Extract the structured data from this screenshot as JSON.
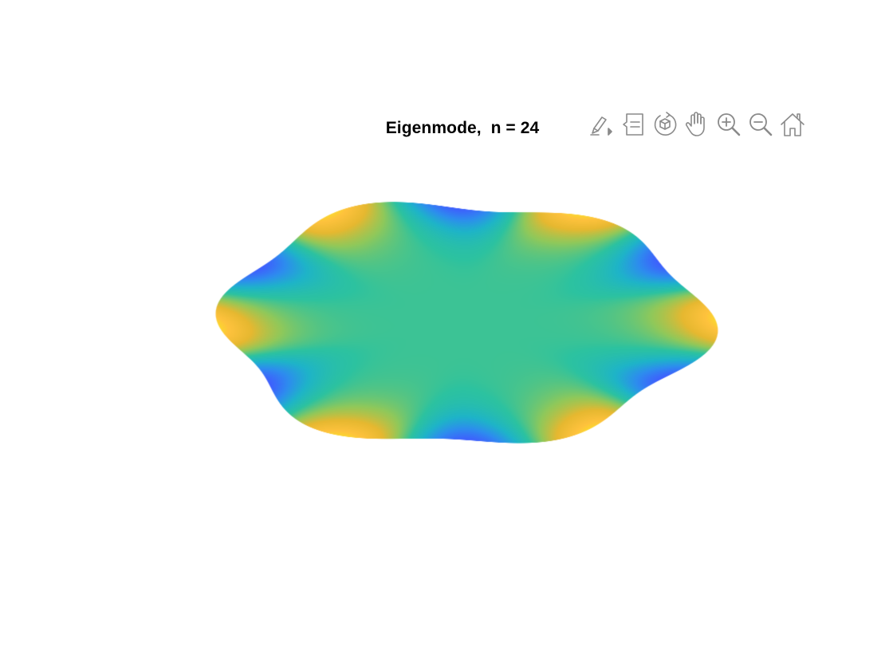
{
  "figure": {
    "title": "Eigenmode,  n = 24"
  },
  "toolbar": {
    "items": [
      {
        "name": "brush-icon",
        "tooltip_label": "Brush"
      },
      {
        "name": "data-tips-icon",
        "tooltip_label": "Data Tips"
      },
      {
        "name": "rotate-3d-icon",
        "tooltip_label": "Rotate 3D"
      },
      {
        "name": "pan-hand-icon",
        "tooltip_label": "Pan"
      },
      {
        "name": "zoom-in-icon",
        "tooltip_label": "Zoom In"
      },
      {
        "name": "zoom-out-icon",
        "tooltip_label": "Zoom Out"
      },
      {
        "name": "home-icon",
        "tooltip_label": "Restore View"
      }
    ],
    "icon_color": "#8a8a8a"
  },
  "chart_data": {
    "type": "heatmap",
    "title": "Eigenmode,  n = 24",
    "xlabel": "",
    "ylabel": "",
    "axes_visible": false,
    "grid": false,
    "legend": "none",
    "colormap": "parula",
    "colormap_stops": [
      "#3e26a8",
      "#3e60fd",
      "#2d8dee",
      "#1eb4c8",
      "#2cc2a0",
      "#90c85a",
      "#e6b830",
      "#fec23d",
      "#f6f915"
    ],
    "mode_number": 24,
    "angular_nodes": 12,
    "value_range": [
      -1,
      1
    ]
  }
}
